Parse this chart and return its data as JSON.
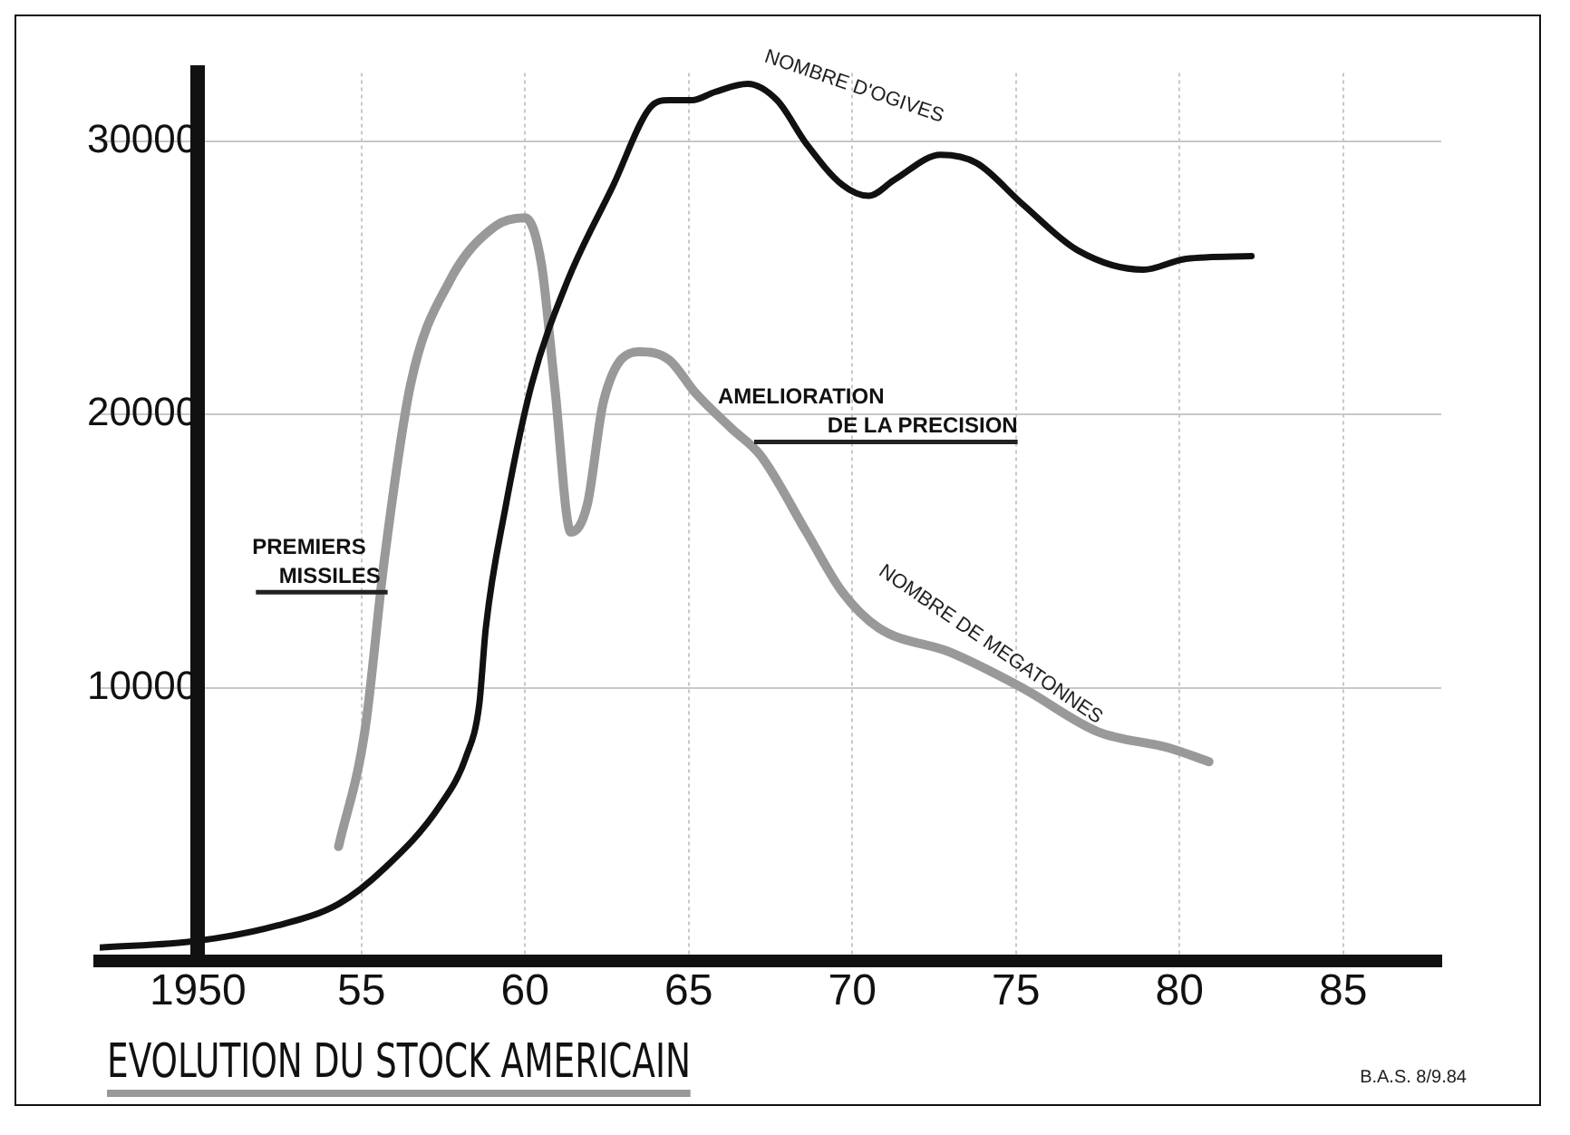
{
  "chart_data": {
    "type": "line",
    "title": "EVOLUTION DU STOCK AMERICAIN",
    "xlim": [
      1947,
      1988
    ],
    "ylim": [
      0,
      32500
    ],
    "xticks": [
      1950,
      {
        "value": 1955,
        "label": "55"
      },
      {
        "value": 1960,
        "label": "60"
      },
      {
        "value": 1965,
        "label": "65"
      },
      {
        "value": 1970,
        "label": "70"
      },
      {
        "value": 1975,
        "label": "75"
      },
      {
        "value": 1980,
        "label": "80"
      },
      {
        "value": 1985,
        "label": "85"
      }
    ],
    "yticks": [
      10000,
      20000,
      30000
    ],
    "grid": true,
    "legend": false,
    "marker": "none",
    "line_style": "solid",
    "series": [
      {
        "name": "NOMBRE D'OGIVES",
        "color": "#111111",
        "x": [
          1947,
          1950,
          1952.4,
          1954.3,
          1955.7,
          1957.4,
          1958.2,
          1958.6,
          1958.8,
          1959.4,
          1960.2,
          1961.3,
          1962.7,
          1963.8,
          1964.4,
          1965.1,
          1965.8,
          1966.8,
          1967.7,
          1968.6,
          1969.7,
          1970.5,
          1971.3,
          1972.7,
          1973.8,
          1975.2,
          1976.9,
          1978.9,
          1980.2,
          1982.2
        ],
        "values": [
          500,
          750,
          1300,
          2100,
          3400,
          5700,
          7500,
          9400,
          12200,
          16600,
          21100,
          24900,
          28400,
          31200,
          31500,
          31500,
          31800,
          32100,
          31500,
          29900,
          28400,
          28000,
          28600,
          29500,
          29200,
          27700,
          26000,
          25300,
          25700,
          25800
        ]
      },
      {
        "name": "NOMBRE DE MEGATONNES",
        "color": "#999999",
        "x": [
          1954.3,
          1955.1,
          1955.7,
          1956.5,
          1957.7,
          1959.1,
          1960,
          1960.5,
          1960.9,
          1961.4,
          1961.9,
          1962.4,
          1963.5,
          1964.4,
          1965.2,
          1966.3,
          1967.2,
          1968.6,
          1969.7,
          1970.8,
          1973,
          1975.2,
          1977.5,
          1979.7,
          1980.9
        ],
        "values": [
          4200,
          8400,
          14700,
          21100,
          24900,
          26900,
          27200,
          25500,
          21100,
          15700,
          16700,
          20500,
          22300,
          22000,
          20800,
          19500,
          18500,
          15700,
          13500,
          12200,
          11300,
          10000,
          8400,
          7800,
          7300
        ]
      }
    ],
    "annotations": [
      {
        "text": "PREMIERS MISSILES",
        "x": 1955.8,
        "y": 13500
      },
      {
        "text": "AMELIORATION DE LA PRECISION",
        "x": 1967,
        "y": 19000
      },
      "B.A.S. 8/9.84"
    ]
  }
}
